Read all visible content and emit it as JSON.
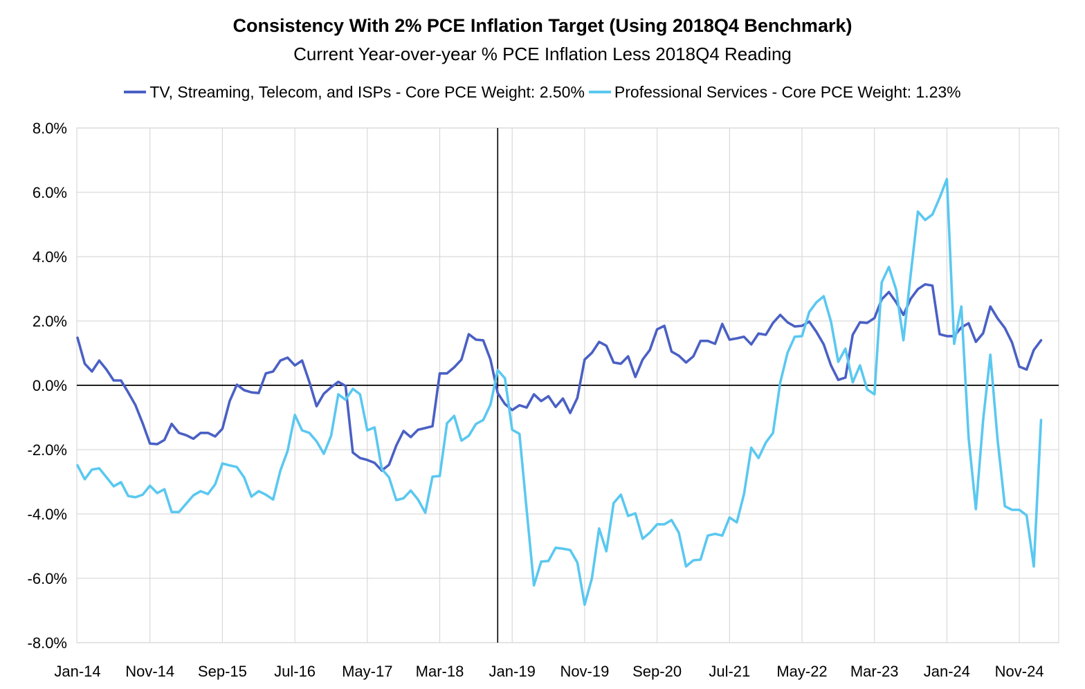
{
  "chart_data": {
    "type": "line",
    "title": "Consistency With 2% PCE Inflation Target (Using 2018Q4 Benchmark)",
    "subtitle": "Current Year-over-year % PCE Inflation Less 2018Q4 Reading",
    "xlabel": "",
    "ylabel": "",
    "legend_position": "top",
    "grid": true,
    "ylim": [
      -8,
      8
    ],
    "y_step": 2,
    "y_tick_labels": [
      "8.0%",
      "6.0%",
      "4.0%",
      "2.0%",
      "0.0%",
      "-2.0%",
      "-4.0%",
      "-6.0%",
      "-8.0%"
    ],
    "x_tick_every": 10,
    "x_tick_labels": [
      "Jan-14",
      "Nov-14",
      "Sep-15",
      "Jul-16",
      "May-17",
      "Mar-18",
      "Jan-19",
      "Nov-19",
      "Sep-20",
      "Jul-21",
      "May-22",
      "Mar-23",
      "Jan-24",
      "Nov-24"
    ],
    "benchmark_index": 58,
    "series": [
      {
        "name": "TV, Streaming, Telecom, and ISPs - Core PCE Weight: 2.50%",
        "color": "#4a60c4",
        "values": [
          1.48,
          0.67,
          0.43,
          0.77,
          0.49,
          0.15,
          0.15,
          -0.22,
          -0.62,
          -1.18,
          -1.81,
          -1.83,
          -1.7,
          -1.2,
          -1.48,
          -1.55,
          -1.66,
          -1.48,
          -1.48,
          -1.59,
          -1.35,
          -0.49,
          0.02,
          -0.15,
          -0.22,
          -0.24,
          0.37,
          0.43,
          0.77,
          0.86,
          0.62,
          0.77,
          0.11,
          -0.65,
          -0.26,
          -0.06,
          0.11,
          -0.02,
          -2.09,
          -2.26,
          -2.32,
          -2.41,
          -2.65,
          -2.47,
          -1.87,
          -1.42,
          -1.61,
          -1.38,
          -1.33,
          -1.27,
          0.37,
          0.37,
          0.56,
          0.8,
          1.59,
          1.42,
          1.4,
          0.8,
          -0.24,
          -0.58,
          -0.77,
          -0.62,
          -0.69,
          -0.28,
          -0.49,
          -0.34,
          -0.67,
          -0.41,
          -0.86,
          -0.39,
          0.8,
          1.01,
          1.35,
          1.23,
          0.71,
          0.67,
          0.9,
          0.26,
          0.8,
          1.1,
          1.74,
          1.85,
          1.05,
          0.92,
          0.71,
          0.9,
          1.38,
          1.38,
          1.29,
          1.91,
          1.42,
          1.46,
          1.51,
          1.27,
          1.61,
          1.57,
          1.94,
          2.19,
          1.96,
          1.83,
          1.85,
          1.98,
          1.66,
          1.27,
          0.62,
          0.17,
          0.24,
          1.57,
          1.96,
          1.94,
          2.09,
          2.67,
          2.9,
          2.58,
          2.19,
          2.69,
          2.99,
          3.14,
          3.1,
          1.59,
          1.53,
          1.53,
          1.8,
          1.93,
          1.35,
          1.62,
          2.45,
          2.08,
          1.78,
          1.33,
          0.58,
          0.49,
          1.1,
          1.4
        ]
      },
      {
        "name": "Professional Services - Core PCE Weight: 1.23%",
        "color": "#5ac8f0",
        "values": [
          -2.49,
          -2.92,
          -2.62,
          -2.58,
          -2.86,
          -3.14,
          -3.01,
          -3.44,
          -3.48,
          -3.4,
          -3.12,
          -3.35,
          -3.23,
          -3.94,
          -3.94,
          -3.68,
          -3.42,
          -3.29,
          -3.38,
          -3.08,
          -2.43,
          -2.49,
          -2.54,
          -2.86,
          -3.46,
          -3.29,
          -3.4,
          -3.55,
          -2.65,
          -2.04,
          -0.92,
          -1.4,
          -1.48,
          -1.74,
          -2.13,
          -1.57,
          -0.28,
          -0.45,
          -0.11,
          -0.28,
          -1.4,
          -1.31,
          -2.6,
          -2.86,
          -3.57,
          -3.51,
          -3.27,
          -3.55,
          -3.96,
          -2.84,
          -2.82,
          -1.18,
          -0.95,
          -1.72,
          -1.57,
          -1.2,
          -1.08,
          -0.6,
          0.47,
          0.22,
          -1.38,
          -1.51,
          -3.87,
          -6.22,
          -5.48,
          -5.46,
          -5.05,
          -5.08,
          -5.12,
          -5.51,
          -6.82,
          -6.0,
          -4.45,
          -5.16,
          -3.66,
          -3.4,
          -4.06,
          -3.98,
          -4.77,
          -4.58,
          -4.32,
          -4.32,
          -4.19,
          -4.58,
          -5.63,
          -5.44,
          -5.42,
          -4.67,
          -4.62,
          -4.67,
          -4.11,
          -4.26,
          -3.38,
          -1.94,
          -2.26,
          -1.78,
          -1.48,
          0.09,
          1.01,
          1.51,
          1.53,
          2.28,
          2.58,
          2.77,
          1.98,
          0.73,
          1.14,
          0.09,
          0.62,
          -0.13,
          -0.28,
          3.2,
          3.68,
          2.97,
          1.4,
          3.44,
          5.4,
          5.14,
          5.31,
          5.83,
          6.41,
          1.29,
          2.45,
          -1.63,
          -3.85,
          -1.08,
          0.95,
          -1.7,
          -3.76,
          -3.87,
          -3.87,
          -4.04,
          -5.63,
          -1.08
        ]
      }
    ]
  }
}
